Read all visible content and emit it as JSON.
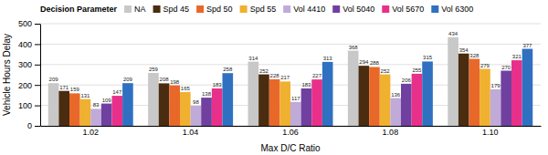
{
  "chart_data": {
    "type": "bar",
    "xlabel": "Max D/C Ratio",
    "ylabel": "Vehicle Hours Delay",
    "legend_title": "Decision Parameter",
    "categories": [
      "1.02",
      "1.04",
      "1.06",
      "1.08",
      "1.10"
    ],
    "series": [
      {
        "name": "NA",
        "color": "#c8c8c8",
        "values": [
          209,
          259,
          314,
          368,
          434
        ]
      },
      {
        "name": "Spd 45",
        "color": "#4a2c10",
        "values": [
          171,
          208,
          252,
          294,
          354
        ]
      },
      {
        "name": "Spd 50",
        "color": "#e8682a",
        "values": [
          159,
          198,
          228,
          288,
          328
        ]
      },
      {
        "name": "Spd 55",
        "color": "#f0b030",
        "values": [
          131,
          165,
          217,
          252,
          279
        ]
      },
      {
        "name": "Vol 4410",
        "color": "#c0aad8",
        "values": [
          83,
          98,
          117,
          136,
          179
        ]
      },
      {
        "name": "Vol 5040",
        "color": "#7040a0",
        "values": [
          109,
          138,
          183,
          206,
          270
        ]
      },
      {
        "name": "Vol 5670",
        "color": "#e8308a",
        "values": [
          147,
          183,
          227,
          255,
          321
        ]
      },
      {
        "name": "Vol 6300",
        "color": "#3070c0",
        "values": [
          209,
          258,
          313,
          315,
          377
        ]
      }
    ],
    "ylim": [
      0,
      500
    ],
    "yticks": [
      0,
      100,
      200,
      300,
      400,
      500
    ],
    "grid": true,
    "legend": "top",
    "data_labels": true
  }
}
